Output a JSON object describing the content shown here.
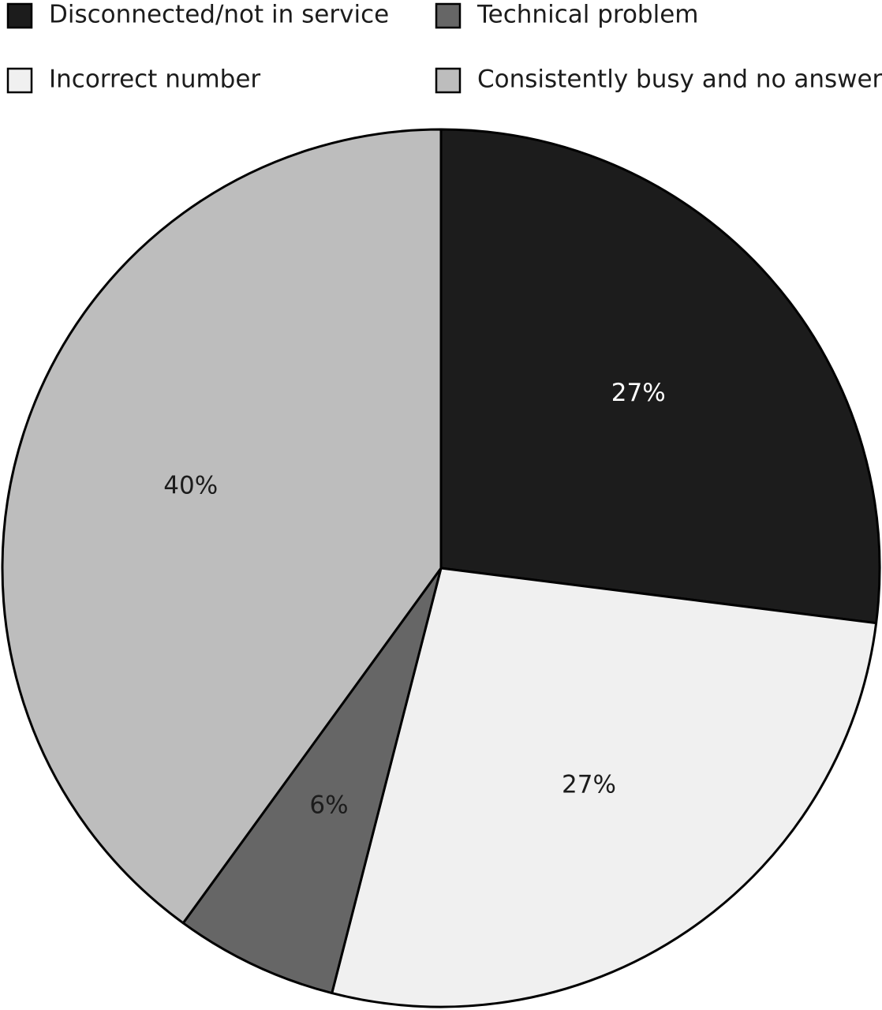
{
  "chart_data": {
    "type": "pie",
    "categories": [
      "Disconnected/not in service",
      "Incorrect number",
      "Technical problem",
      "Consistently busy and no answer"
    ],
    "values": [
      27,
      27,
      6,
      40
    ],
    "value_labels": [
      "27%",
      "27%",
      "6%",
      "40%"
    ],
    "colors": [
      "#1c1c1c",
      "#f0f0f0",
      "#666666",
      "#bdbdbd"
    ],
    "label_colors": [
      "#ffffff",
      "#1c1c1c",
      "#1c1c1c",
      "#1c1c1c"
    ],
    "legend_order": [
      0,
      2,
      1,
      3
    ],
    "legend": "top"
  }
}
